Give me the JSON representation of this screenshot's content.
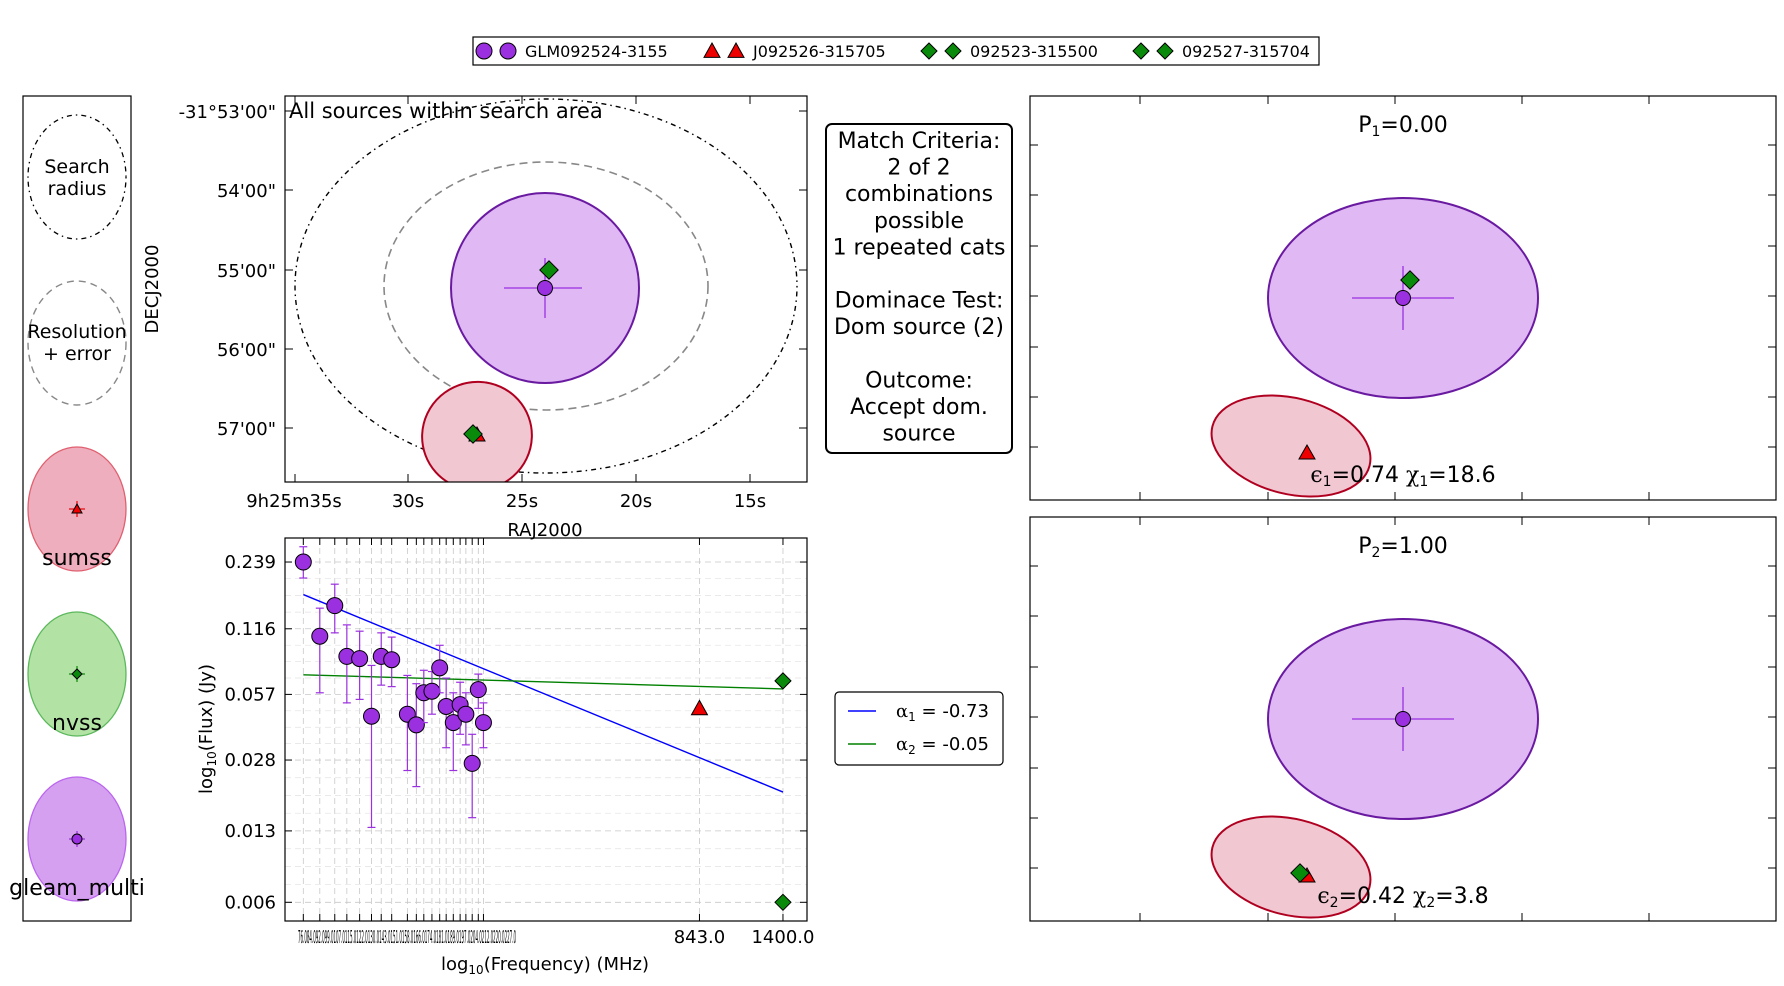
{
  "legend_top": {
    "entries": [
      {
        "label": "GLM092524-3155",
        "marker": "circle",
        "color": "#9b30e0"
      },
      {
        "label": "J092526-315705",
        "marker": "triangle",
        "color": "#ee0000"
      },
      {
        "label": "092523-315500",
        "marker": "diamond",
        "color": "#0a8a0a"
      },
      {
        "label": "092527-315704",
        "marker": "diamond",
        "color": "#0a8a0a"
      }
    ]
  },
  "key_panel": {
    "search_label": [
      "Search",
      "radius"
    ],
    "resolution_label": [
      "Resolution",
      "+ error"
    ],
    "catalogues": [
      {
        "name": "sumss",
        "fill": "#ea9aad",
        "stroke": "#e06070",
        "marker": "triangle",
        "marker_color": "#ee0000"
      },
      {
        "name": "nvss",
        "fill": "#9fdc8f",
        "stroke": "#5cb85c",
        "marker": "diamond",
        "marker_color": "#0a8a0a"
      },
      {
        "name": "gleam_multi",
        "fill": "#cc88ee",
        "stroke": "#bb66ee",
        "marker": "circle",
        "marker_color": "#9b30e0"
      }
    ]
  },
  "sky_plot": {
    "title": "All sources within search area",
    "xlabel": "RAJ2000",
    "ylabel": "DECJ2000",
    "xticks": [
      "9h25m35s",
      "30s",
      "25s",
      "20s",
      "15s"
    ],
    "yticks": [
      "-31°53'00\"",
      "54'00\"",
      "55'00\"",
      "56'00\"",
      "57'00\""
    ]
  },
  "criteria": {
    "lines": [
      "Match Criteria:",
      "2 of 2",
      "combinations",
      "possible",
      "1 repeated cats",
      "",
      "Dominace Test:",
      "Dom source (2)",
      "",
      "Outcome:",
      "Accept dom.",
      "source"
    ]
  },
  "sed_legend": {
    "entries": [
      {
        "label": "α1 = -0.73",
        "sym": "α",
        "sub": "1",
        "rest": " = -0.73",
        "color": "#0000ff"
      },
      {
        "label": "α2 = -0.05",
        "sym": "α",
        "sub": "2",
        "rest": " = -0.05",
        "color": "#008000"
      }
    ]
  },
  "chart_data": {
    "type": "scatter",
    "xlabel": "log10(Frequency) (MHz)",
    "ylabel": "log10(Flux) (Jy)",
    "xscale": "log",
    "yscale": "log",
    "yticks": [
      0.239,
      0.116,
      0.057,
      0.028,
      0.013,
      0.006
    ],
    "ytick_labels": [
      "0.239",
      "0.116",
      "0.057",
      "0.028",
      "0.013",
      "0.006"
    ],
    "xtick_labels_left": "76.084.092.099.0107.0115.0122.0130.0143.0151.0158.0166.0174.0181.0189.0197.0204.0212.0220.0227.0",
    "xtick_labels": [
      "843.0",
      "1400.0"
    ],
    "xticks": [
      843,
      1400
    ],
    "grid": true,
    "series": [
      {
        "name": "GLM092524-3155",
        "marker": "circle",
        "color": "#9b30e0",
        "points": [
          {
            "x": 76,
            "y": 0.239,
            "lo": 0.201,
            "hi": 0.282
          },
          {
            "x": 84,
            "y": 0.107,
            "lo": 0.058,
            "hi": 0.145
          },
          {
            "x": 92,
            "y": 0.149,
            "lo": 0.111,
            "hi": 0.188
          },
          {
            "x": 99,
            "y": 0.086,
            "lo": 0.052,
            "hi": 0.121
          },
          {
            "x": 107,
            "y": 0.084,
            "lo": 0.054,
            "hi": 0.113
          },
          {
            "x": 115,
            "y": 0.045,
            "lo": 0.0135,
            "hi": 0.078
          },
          {
            "x": 122,
            "y": 0.086,
            "lo": 0.063,
            "hi": 0.111
          },
          {
            "x": 130,
            "y": 0.083,
            "lo": 0.062,
            "hi": 0.106
          },
          {
            "x": 143,
            "y": 0.046,
            "lo": 0.025,
            "hi": 0.07
          },
          {
            "x": 151,
            "y": 0.041,
            "lo": 0.021,
            "hi": 0.064
          },
          {
            "x": 158,
            "y": 0.058,
            "lo": 0.042,
            "hi": 0.074
          },
          {
            "x": 166,
            "y": 0.059,
            "lo": 0.046,
            "hi": 0.073
          },
          {
            "x": 174,
            "y": 0.076,
            "lo": 0.058,
            "hi": 0.097
          },
          {
            "x": 181,
            "y": 0.05,
            "lo": 0.032,
            "hi": 0.068
          },
          {
            "x": 189,
            "y": 0.042,
            "lo": 0.025,
            "hi": 0.058
          },
          {
            "x": 197,
            "y": 0.051,
            "lo": 0.037,
            "hi": 0.065
          },
          {
            "x": 204,
            "y": 0.046,
            "lo": 0.033,
            "hi": 0.058
          },
          {
            "x": 212,
            "y": 0.027,
            "lo": 0.015,
            "hi": 0.037
          },
          {
            "x": 220,
            "y": 0.06,
            "lo": 0.049,
            "hi": 0.071
          },
          {
            "x": 227,
            "y": 0.042,
            "lo": 0.032,
            "hi": 0.052
          }
        ]
      },
      {
        "name": "J092526-315705",
        "marker": "triangle",
        "color": "#ee0000",
        "points": [
          {
            "x": 843,
            "y": 0.049
          }
        ]
      },
      {
        "name": "092523-315500",
        "marker": "diamond",
        "color": "#0a8a0a",
        "points": [
          {
            "x": 1400,
            "y": 0.066
          }
        ]
      },
      {
        "name": "092527-315704",
        "marker": "diamond",
        "color": "#0a8a0a",
        "points": [
          {
            "x": 1400,
            "y": 0.006
          }
        ]
      }
    ],
    "fit_lines": [
      {
        "name": "α1 = -0.73",
        "color": "#0000ff",
        "x": [
          76,
          1400
        ],
        "y": [
          0.168,
          0.0198
        ]
      },
      {
        "name": "α2 = -0.05",
        "color": "#008000",
        "x": [
          76,
          1400
        ],
        "y": [
          0.0705,
          0.0605
        ]
      }
    ]
  },
  "combo_panels": [
    {
      "p_label": "P",
      "p_sub": "1",
      "p_value": "=0.00",
      "eps": "ϵ",
      "eps_sub": "1",
      "eps_value": "=0.74",
      "chi": "χ",
      "chi_sub": "1",
      "chi_value": "=18.6"
    },
    {
      "p_label": "P",
      "p_sub": "2",
      "p_value": "=1.00",
      "eps": "ϵ",
      "eps_sub": "2",
      "eps_value": "=0.42",
      "chi": "χ",
      "chi_sub": "2",
      "chi_value": "=3.8"
    }
  ]
}
